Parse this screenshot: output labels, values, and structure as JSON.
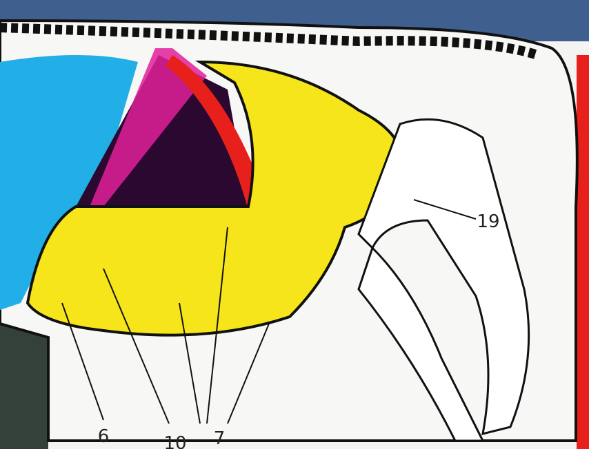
{
  "callouts": [
    "6",
    "10",
    "7",
    "19"
  ]
}
